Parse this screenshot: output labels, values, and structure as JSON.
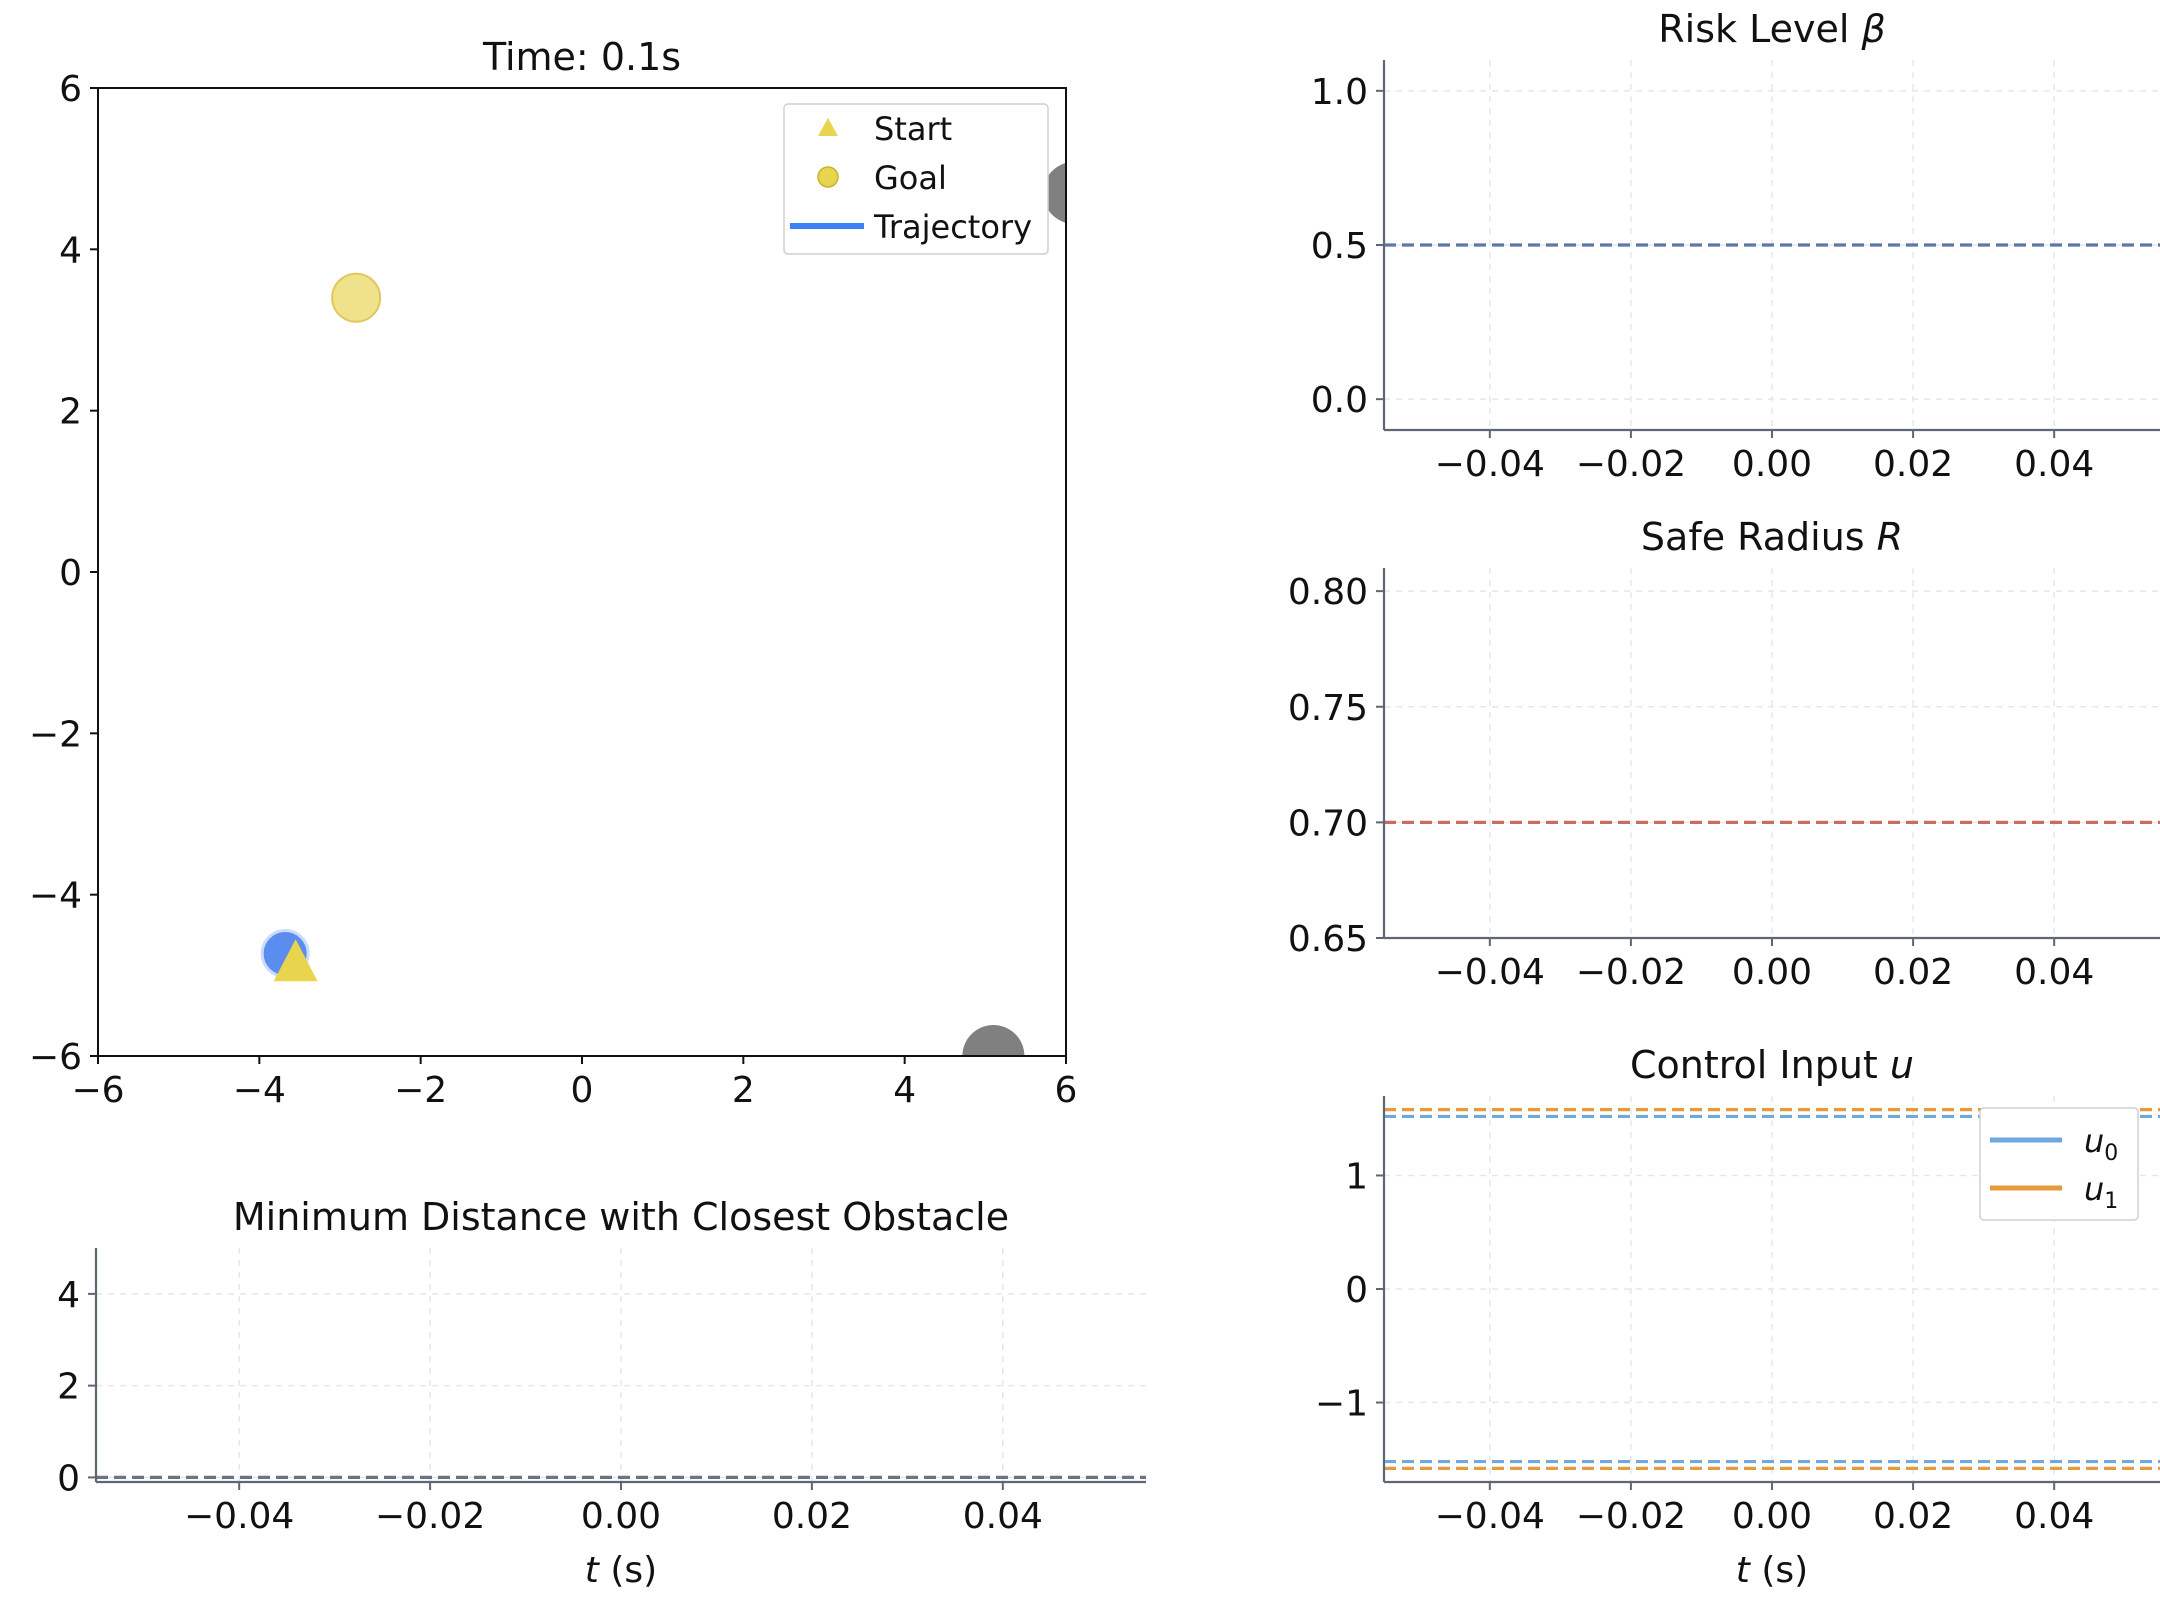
{
  "chart_data": [
    {
      "id": "trajectory",
      "type": "scatter",
      "title": "Time: 0.1s",
      "xlim": [
        -6,
        6
      ],
      "ylim": [
        -6,
        6
      ],
      "xticks": [
        -6,
        -4,
        -2,
        0,
        2,
        4,
        6
      ],
      "yticks": [
        -6,
        -4,
        -2,
        0,
        2,
        4,
        6
      ],
      "xtick_labels": [
        "−6",
        "−4",
        "−2",
        "0",
        "2",
        "4",
        "6"
      ],
      "ytick_labels": [
        "−6",
        "−4",
        "−2",
        "0",
        "2",
        "4",
        "6"
      ],
      "grid": false,
      "legend_position": "top-right",
      "legend": [
        {
          "label": "Start",
          "marker": "triangle",
          "color": "#e8d44d"
        },
        {
          "label": "Goal",
          "marker": "circle",
          "color": "#e8d44d"
        },
        {
          "label": "Trajectory",
          "marker": "line",
          "color": "#3b82f6"
        }
      ],
      "points": {
        "goal": {
          "x": -2.8,
          "y": 3.4,
          "color": "#f0e28a"
        },
        "robot": {
          "x": -3.68,
          "y": -4.73,
          "color": "#5b8def"
        },
        "start": {
          "x": -3.55,
          "y": -4.85,
          "color": "#e8d44d"
        }
      },
      "obstacles": [
        {
          "x": 6.1,
          "y": 4.7,
          "color": "#808080"
        },
        {
          "x": 5.1,
          "y": -6.0,
          "color": "#808080"
        }
      ]
    },
    {
      "id": "risk",
      "type": "line",
      "title": "Risk Level β",
      "title_main": "Risk Level ",
      "title_symbol": "β",
      "xlim": [
        -0.055,
        0.055
      ],
      "ylim": [
        -0.1,
        1.1
      ],
      "xticks": [
        -0.04,
        -0.02,
        0.0,
        0.02,
        0.04
      ],
      "yticks": [
        0.0,
        0.5,
        1.0
      ],
      "xtick_labels": [
        "−0.04",
        "−0.02",
        "0.00",
        "0.02",
        "0.04"
      ],
      "ytick_labels": [
        "0.0",
        "0.5",
        "1.0"
      ],
      "grid": true,
      "hlines": [
        {
          "y": 0.5,
          "color": "#5e77a8",
          "style": "dashed"
        }
      ]
    },
    {
      "id": "radius",
      "type": "line",
      "title": "Safe Radius R",
      "title_main": "Safe Radius ",
      "title_symbol": "R",
      "xlim": [
        -0.055,
        0.055
      ],
      "ylim": [
        0.65,
        0.81
      ],
      "xticks": [
        -0.04,
        -0.02,
        0.0,
        0.02,
        0.04
      ],
      "yticks": [
        0.65,
        0.7,
        0.75,
        0.8
      ],
      "xtick_labels": [
        "−0.04",
        "−0.02",
        "0.00",
        "0.02",
        "0.04"
      ],
      "ytick_labels": [
        "0.65",
        "0.70",
        "0.75",
        "0.80"
      ],
      "grid": true,
      "hlines": [
        {
          "y": 0.7,
          "color": "#c76e63",
          "style": "dashed"
        }
      ]
    },
    {
      "id": "control",
      "type": "line",
      "title": "Control Input u",
      "title_main": "Control Input ",
      "title_symbol": "u",
      "xlabel_main": "t",
      "xlabel_unit": " (s)",
      "xlim": [
        -0.055,
        0.055
      ],
      "ylim": [
        -1.7,
        1.7
      ],
      "xticks": [
        -0.04,
        -0.02,
        0.0,
        0.02,
        0.04
      ],
      "yticks": [
        -1,
        0,
        1
      ],
      "xtick_labels": [
        "−0.04",
        "−0.02",
        "0.00",
        "0.02",
        "0.04"
      ],
      "ytick_labels": [
        "−1",
        "0",
        "1"
      ],
      "grid": true,
      "legend_position": "top-right",
      "series": [
        {
          "name": "u",
          "sub": "0",
          "color": "#6fa8dc"
        },
        {
          "name": "u",
          "sub": "1",
          "color": "#e69a3c"
        }
      ],
      "hlines": [
        {
          "y": 1.58,
          "color": "#e69a3c",
          "style": "dashed"
        },
        {
          "y": 1.52,
          "color": "#6fa8dc",
          "style": "dashed"
        },
        {
          "y": -1.52,
          "color": "#6fa8dc",
          "style": "dashed"
        },
        {
          "y": -1.58,
          "color": "#e69a3c",
          "style": "dashed"
        }
      ]
    },
    {
      "id": "mindist",
      "type": "line",
      "title": "Minimum Distance with Closest Obstacle",
      "xlabel_main": "t",
      "xlabel_unit": " (s)",
      "xlim": [
        -0.055,
        0.055
      ],
      "ylim": [
        -0.1,
        5.0
      ],
      "xticks": [
        -0.04,
        -0.02,
        0.0,
        0.02,
        0.04
      ],
      "yticks": [
        0,
        2,
        4
      ],
      "xtick_labels": [
        "−0.04",
        "−0.02",
        "0.00",
        "0.02",
        "0.04"
      ],
      "ytick_labels": [
        "0",
        "2",
        "4"
      ],
      "grid": true,
      "hlines": [
        {
          "y": 0.0,
          "color": "#6b7280",
          "style": "dashed"
        }
      ]
    }
  ]
}
